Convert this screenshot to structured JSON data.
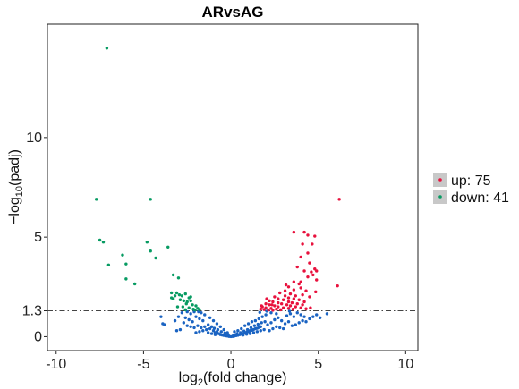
{
  "chart_data": {
    "type": "scatter",
    "title": "ARvsAG",
    "xlabel": {
      "base": "log",
      "sub": "2",
      "rest": "(fold change)"
    },
    "ylabel": {
      "prefix": "−log",
      "sub": "10",
      "rest": "(padj)"
    },
    "xlim": [
      -10.5,
      10.7
    ],
    "ylim": [
      -0.7,
      15.7
    ],
    "xticks": [
      -10,
      -5,
      0,
      5,
      10
    ],
    "xtick_labels": [
      "-10",
      "-5",
      "0",
      "5",
      "10"
    ],
    "yticks": [
      0,
      1.3,
      5,
      10
    ],
    "ytick_labels": [
      "0",
      "1.3",
      "5",
      "10"
    ],
    "threshold_line": 1.3,
    "legend_position": "right",
    "colors": {
      "up": "#e8113d",
      "down": "#079b62",
      "nosig": "#1a63c2",
      "threshold": "#444444"
    },
    "legend": [
      {
        "label": "up: 75",
        "color": "#e8113d"
      },
      {
        "label": "down: 41",
        "color": "#079b62"
      }
    ],
    "series": [
      {
        "name": "up",
        "color": "#e8113d",
        "points": [
          [
            6.2,
            6.9
          ],
          [
            3.6,
            5.25
          ],
          [
            4.2,
            5.25
          ],
          [
            4.4,
            5.1
          ],
          [
            4.8,
            5.05
          ],
          [
            4.1,
            4.65
          ],
          [
            4.65,
            4.65
          ],
          [
            4.4,
            4.2
          ],
          [
            4.0,
            4.0
          ],
          [
            4.5,
            3.7
          ],
          [
            4.8,
            3.4
          ],
          [
            4.9,
            3.3
          ],
          [
            3.8,
            3.5
          ],
          [
            4.2,
            3.3
          ],
          [
            4.6,
            3.25
          ],
          [
            4.4,
            3.0
          ],
          [
            4.9,
            2.85
          ],
          [
            3.6,
            2.75
          ],
          [
            3.9,
            2.65
          ],
          [
            3.3,
            2.5
          ],
          [
            3.6,
            2.35
          ],
          [
            4.0,
            2.45
          ],
          [
            4.3,
            2.3
          ],
          [
            4.85,
            2.25
          ],
          [
            6.1,
            2.55
          ],
          [
            3.1,
            2.3
          ],
          [
            3.4,
            2.15
          ],
          [
            3.7,
            2.05
          ],
          [
            4.1,
            2.1
          ],
          [
            4.5,
            2.0
          ],
          [
            4.0,
            2.75
          ],
          [
            2.8,
            2.2
          ],
          [
            3.1,
            2.05
          ],
          [
            3.3,
            1.95
          ],
          [
            3.6,
            1.9
          ],
          [
            3.9,
            1.85
          ],
          [
            4.2,
            1.75
          ],
          [
            2.5,
            2.0
          ],
          [
            2.7,
            1.9
          ],
          [
            3.0,
            1.85
          ],
          [
            3.3,
            1.75
          ],
          [
            3.5,
            1.7
          ],
          [
            3.8,
            1.65
          ],
          [
            4.1,
            1.6
          ],
          [
            2.2,
            1.8
          ],
          [
            2.4,
            1.75
          ],
          [
            2.7,
            1.7
          ],
          [
            2.9,
            1.65
          ],
          [
            3.2,
            1.6
          ],
          [
            3.4,
            1.55
          ],
          [
            3.7,
            1.5
          ],
          [
            4.0,
            1.45
          ],
          [
            2.0,
            1.65
          ],
          [
            2.2,
            1.6
          ],
          [
            2.5,
            1.55
          ],
          [
            2.7,
            1.5
          ],
          [
            3.0,
            1.45
          ],
          [
            3.3,
            1.42
          ],
          [
            1.8,
            1.5
          ],
          [
            2.0,
            1.45
          ],
          [
            2.3,
            1.42
          ],
          [
            2.6,
            1.38
          ],
          [
            1.7,
            1.38
          ],
          [
            1.9,
            1.36
          ],
          [
            2.15,
            1.34
          ],
          [
            2.4,
            1.33
          ],
          [
            2.85,
            1.35
          ],
          [
            3.55,
            1.38
          ],
          [
            4.3,
            1.4
          ],
          [
            4.55,
            1.45
          ],
          [
            1.75,
            1.55
          ],
          [
            2.05,
            1.9
          ],
          [
            2.35,
            1.6
          ],
          [
            3.15,
            2.6
          ],
          [
            4.7,
            3.1
          ]
        ]
      },
      {
        "name": "down",
        "color": "#079b62",
        "points": [
          [
            -7.1,
            14.5
          ],
          [
            -7.7,
            6.9
          ],
          [
            -4.6,
            6.9
          ],
          [
            -7.5,
            4.85
          ],
          [
            -7.3,
            4.75
          ],
          [
            -4.8,
            4.75
          ],
          [
            -4.6,
            4.3
          ],
          [
            -3.6,
            4.5
          ],
          [
            -6.2,
            4.1
          ],
          [
            -4.3,
            3.95
          ],
          [
            -7.0,
            3.6
          ],
          [
            -6.0,
            3.65
          ],
          [
            -3.3,
            3.1
          ],
          [
            -6.0,
            2.9
          ],
          [
            -5.5,
            2.65
          ],
          [
            -3.0,
            2.95
          ],
          [
            -3.1,
            2.2
          ],
          [
            -3.2,
            2.05
          ],
          [
            -2.8,
            2.05
          ],
          [
            -2.6,
            2.15
          ],
          [
            -2.4,
            1.95
          ],
          [
            -3.4,
            2.2
          ],
          [
            -3.3,
            1.9
          ],
          [
            -2.9,
            1.85
          ],
          [
            -2.7,
            1.8
          ],
          [
            -2.3,
            1.8
          ],
          [
            -2.55,
            1.65
          ],
          [
            -2.2,
            1.6
          ],
          [
            -3.05,
            1.5
          ],
          [
            -2.75,
            1.5
          ],
          [
            -2.0,
            1.55
          ],
          [
            -2.4,
            1.45
          ],
          [
            -1.9,
            1.42
          ],
          [
            -2.15,
            1.38
          ],
          [
            -2.6,
            1.35
          ],
          [
            -1.8,
            1.36
          ],
          [
            -2.05,
            1.34
          ],
          [
            -3.4,
            1.95
          ],
          [
            -2.95,
            2.1
          ],
          [
            -2.5,
            1.75
          ],
          [
            -2.3,
            2.0
          ]
        ]
      },
      {
        "name": "nosig",
        "color": "#1a63c2",
        "points": [
          [
            -4.0,
            1.0
          ],
          [
            -3.8,
            0.6
          ],
          [
            -3.9,
            0.65
          ],
          [
            -2.8,
            1.2
          ],
          [
            -2.5,
            1.25
          ],
          [
            -2.3,
            1.15
          ],
          [
            -2.6,
            0.95
          ],
          [
            -2.4,
            0.85
          ],
          [
            -2.2,
            0.75
          ],
          [
            -2.0,
            1.0
          ],
          [
            -1.8,
            0.9
          ],
          [
            -1.6,
            0.8
          ],
          [
            -2.5,
            0.55
          ],
          [
            -2.3,
            0.5
          ],
          [
            -2.1,
            0.45
          ],
          [
            -1.9,
            0.55
          ],
          [
            -1.7,
            0.45
          ],
          [
            -1.5,
            0.5
          ],
          [
            -1.4,
            0.35
          ],
          [
            -1.2,
            0.4
          ],
          [
            -1.0,
            0.3
          ],
          [
            -0.9,
            0.2
          ],
          [
            -0.8,
            0.25
          ],
          [
            -0.7,
            0.15
          ],
          [
            -0.6,
            0.1
          ],
          [
            -0.5,
            0.08
          ],
          [
            -0.4,
            0.06
          ],
          [
            -0.3,
            0.04
          ],
          [
            -0.2,
            0.03
          ],
          [
            -0.1,
            0.01
          ],
          [
            0.0,
            0.0
          ],
          [
            0.1,
            0.01
          ],
          [
            0.2,
            0.03
          ],
          [
            0.3,
            0.05
          ],
          [
            0.4,
            0.07
          ],
          [
            0.5,
            0.1
          ],
          [
            0.6,
            0.12
          ],
          [
            0.7,
            0.15
          ],
          [
            0.8,
            0.18
          ],
          [
            0.9,
            0.22
          ],
          [
            1.0,
            0.25
          ],
          [
            1.1,
            0.3
          ],
          [
            1.2,
            0.32
          ],
          [
            1.3,
            0.36
          ],
          [
            1.4,
            0.4
          ],
          [
            1.5,
            0.42
          ],
          [
            1.6,
            0.46
          ],
          [
            1.7,
            0.5
          ],
          [
            -1.3,
            0.6
          ],
          [
            -1.1,
            0.5
          ],
          [
            -0.95,
            0.42
          ],
          [
            -0.75,
            0.35
          ],
          [
            -0.55,
            0.25
          ],
          [
            -0.35,
            0.18
          ],
          [
            -0.15,
            0.1
          ],
          [
            0.15,
            0.08
          ],
          [
            0.35,
            0.15
          ],
          [
            0.55,
            0.2
          ],
          [
            0.75,
            0.28
          ],
          [
            0.95,
            0.35
          ],
          [
            1.15,
            0.45
          ],
          [
            1.35,
            0.55
          ],
          [
            1.55,
            0.62
          ],
          [
            1.75,
            0.7
          ],
          [
            1.95,
            0.75
          ],
          [
            2.1,
            0.6
          ],
          [
            2.3,
            0.7
          ],
          [
            2.5,
            0.85
          ],
          [
            2.7,
            0.95
          ],
          [
            2.9,
            0.8
          ],
          [
            3.1,
            0.65
          ],
          [
            3.3,
            0.75
          ],
          [
            3.5,
            0.55
          ],
          [
            3.7,
            0.6
          ],
          [
            3.9,
            0.7
          ],
          [
            4.1,
            0.8
          ],
          [
            4.3,
            0.75
          ],
          [
            4.5,
            0.9
          ],
          [
            4.7,
            1.0
          ],
          [
            4.9,
            1.1
          ],
          [
            5.1,
            0.95
          ],
          [
            2.0,
            1.1
          ],
          [
            2.3,
            1.2
          ],
          [
            2.6,
            1.15
          ],
          [
            1.8,
            1.0
          ],
          [
            1.6,
            0.9
          ],
          [
            1.4,
            0.8
          ],
          [
            1.2,
            0.75
          ],
          [
            1.0,
            0.65
          ],
          [
            0.8,
            0.55
          ],
          [
            -1.5,
            1.1
          ],
          [
            -1.7,
            1.2
          ],
          [
            -1.2,
            0.95
          ],
          [
            -1.0,
            0.8
          ],
          [
            -0.8,
            0.65
          ],
          [
            -0.6,
            0.5
          ],
          [
            -0.4,
            0.35
          ],
          [
            -0.2,
            0.2
          ],
          [
            0.2,
            0.25
          ],
          [
            0.4,
            0.3
          ],
          [
            0.6,
            0.4
          ],
          [
            -2.9,
            0.35
          ],
          [
            -3.1,
            0.3
          ],
          [
            -2.7,
            0.7
          ],
          [
            -3.0,
            1.0
          ],
          [
            -3.2,
            0.8
          ],
          [
            -2.1,
            1.25
          ],
          [
            -1.85,
            1.25
          ],
          [
            3.2,
            1.05
          ],
          [
            3.4,
            1.15
          ],
          [
            3.6,
            1.0
          ],
          [
            3.8,
            1.2
          ],
          [
            4.0,
            1.1
          ],
          [
            4.2,
            1.0
          ],
          [
            2.4,
            0.4
          ],
          [
            2.6,
            0.5
          ],
          [
            2.8,
            0.45
          ],
          [
            3.0,
            0.4
          ],
          [
            1.9,
            0.35
          ],
          [
            2.2,
            0.3
          ],
          [
            -1.6,
            0.3
          ],
          [
            -1.8,
            0.25
          ],
          [
            -2.0,
            0.2
          ],
          [
            -1.3,
            0.2
          ],
          [
            -1.1,
            0.15
          ],
          [
            -0.9,
            0.1
          ],
          [
            0.9,
            0.12
          ],
          [
            1.1,
            0.15
          ],
          [
            1.3,
            0.2
          ],
          [
            1.5,
            0.25
          ],
          [
            1.7,
            0.3
          ],
          [
            0.7,
            0.08
          ],
          [
            5.5,
            1.15
          ],
          [
            3.35,
            1.28
          ],
          [
            2.05,
            1.28
          ],
          [
            1.65,
            1.22
          ]
        ]
      }
    ]
  }
}
